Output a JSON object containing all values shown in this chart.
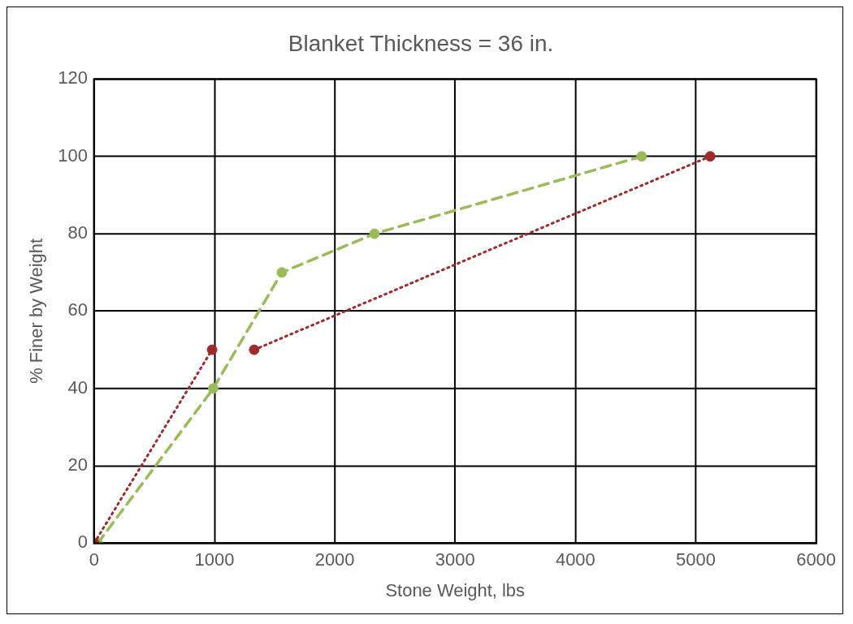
{
  "chart_data": {
    "type": "line",
    "title": "Blanket Thickness = 36 in.",
    "xlabel": "Stone Weight, lbs",
    "ylabel": "% Finer by Weight",
    "series": [
      {
        "x": [
          0,
          980
        ],
        "values": [
          0,
          50
        ],
        "color": "#9e2a2b",
        "line_style": "dotted",
        "marker": "circle"
      },
      {
        "x": [
          1330,
          5120
        ],
        "values": [
          50,
          100
        ],
        "color": "#9e2a2b",
        "line_style": "dotted",
        "marker": "circle"
      },
      {
        "x": [
          30,
          990,
          1560,
          2330,
          4550
        ],
        "values": [
          0,
          40,
          70,
          80,
          100
        ],
        "color": "#9bbb59",
        "line_style": "dashed",
        "marker": "circle"
      }
    ],
    "xlim": [
      0,
      6000
    ],
    "xticks": [
      0,
      1000,
      2000,
      3000,
      4000,
      5000,
      6000
    ],
    "ylim": [
      0,
      120
    ],
    "yticks": [
      0,
      20,
      40,
      60,
      80,
      100,
      120
    ],
    "grid": true,
    "legend": false
  }
}
